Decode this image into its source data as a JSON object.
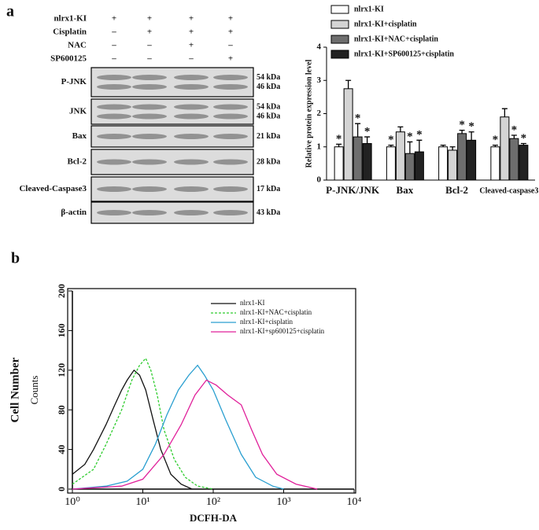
{
  "panel_labels": [
    "a",
    "b"
  ],
  "blot": {
    "conditions": [
      {
        "name": "nlrx1-KI",
        "signs": [
          "+",
          "+",
          "+",
          "+"
        ]
      },
      {
        "name": "Cisplatin",
        "signs": [
          "–",
          "+",
          "+",
          "+"
        ]
      },
      {
        "name": "NAC",
        "signs": [
          "–",
          "–",
          "+",
          "–"
        ]
      },
      {
        "name": "SP600125",
        "signs": [
          "–",
          "–",
          "–",
          "+"
        ]
      }
    ],
    "bands": [
      {
        "name": "P-JNK",
        "sizes": [
          "54 kDa",
          "46 kDa"
        ]
      },
      {
        "name": "JNK",
        "sizes": [
          "54 kDa",
          "46 kDa"
        ]
      },
      {
        "name": "Bax",
        "sizes": [
          "21 kDa"
        ]
      },
      {
        "name": "Bcl-2",
        "sizes": [
          "28 kDa"
        ]
      },
      {
        "name": "Cleaved-Caspase3",
        "sizes": [
          "17 kDa"
        ]
      },
      {
        "name": "β-actin",
        "sizes": [
          "43 kDa"
        ]
      }
    ]
  },
  "chart_data": [
    {
      "type": "bar",
      "ylabel": "Relative protein expression level",
      "categories": [
        "P-JNK/JNK",
        "Bax",
        "Bcl-2",
        "Cleaved-caspase3"
      ],
      "ylim": [
        0,
        4
      ],
      "yticks": [
        0,
        1,
        2,
        3,
        4
      ],
      "series": [
        {
          "name": "nlrx1-KI",
          "color": "#ffffff",
          "values": [
            1.0,
            1.0,
            1.0,
            1.0
          ],
          "errors": [
            0.08,
            0.05,
            0.05,
            0.05
          ],
          "significance": [
            "*",
            "*",
            null,
            "*"
          ]
        },
        {
          "name": "nlrx1-KI+cisplatin",
          "color": "#d4d4d4",
          "values": [
            2.75,
            1.45,
            0.9,
            1.9
          ],
          "errors": [
            0.25,
            0.15,
            0.1,
            0.25
          ],
          "significance": [
            null,
            null,
            null,
            null
          ]
        },
        {
          "name": "nlrx1-KI+NAC+cisplatin",
          "color": "#6e6e6e",
          "values": [
            1.3,
            0.8,
            1.4,
            1.25
          ],
          "errors": [
            0.4,
            0.35,
            0.1,
            0.1
          ],
          "significance": [
            "*",
            "*",
            "*",
            "*"
          ]
        },
        {
          "name": "nlrx1-KI+SP600125+cisplatin",
          "color": "#222222",
          "values": [
            1.1,
            0.85,
            1.2,
            1.05
          ],
          "errors": [
            0.2,
            0.35,
            0.25,
            0.05
          ],
          "significance": [
            "*",
            "*",
            "*",
            "*"
          ]
        }
      ]
    },
    {
      "type": "line",
      "xlabel": "DCFH-DA",
      "ylabel": "Cell Number",
      "ylabel_inner": "Counts",
      "log_x": true,
      "xlim": [
        1,
        10000
      ],
      "xticks": [
        {
          "value": 1,
          "label": "10⁰"
        },
        {
          "value": 10,
          "label": "10¹"
        },
        {
          "value": 100,
          "label": "10²"
        },
        {
          "value": 1000,
          "label": "10³"
        },
        {
          "value": 10000,
          "label": "10⁴"
        }
      ],
      "ylim": [
        0,
        200
      ],
      "yticks": [
        0,
        40,
        80,
        120,
        160,
        200
      ],
      "series": [
        {
          "name": "nlrx1-KI",
          "color": "#111111",
          "dashed": false,
          "x": [
            1,
            1.5,
            2,
            3,
            4,
            5,
            6,
            7.5,
            9,
            11,
            14,
            18,
            25,
            35,
            50
          ],
          "values": [
            15,
            25,
            40,
            65,
            85,
            100,
            110,
            120,
            115,
            100,
            70,
            40,
            15,
            5,
            0
          ]
        },
        {
          "name": "nlrx1-KI+NAC+cisplatin",
          "color": "#2ecc2e",
          "dashed": true,
          "x": [
            1,
            2,
            3,
            5,
            7,
            9,
            11,
            13,
            16,
            20,
            28,
            40,
            60,
            100
          ],
          "values": [
            5,
            20,
            45,
            80,
            110,
            125,
            132,
            120,
            95,
            60,
            30,
            12,
            3,
            0
          ]
        },
        {
          "name": "nlrx1-KI+cisplatin",
          "color": "#2a9fd0",
          "dashed": false,
          "x": [
            1,
            3,
            6,
            10,
            15,
            22,
            32,
            45,
            60,
            75,
            100,
            150,
            250,
            400,
            700,
            1000
          ],
          "values": [
            0,
            3,
            8,
            20,
            45,
            75,
            100,
            115,
            125,
            115,
            100,
            70,
            35,
            12,
            3,
            0
          ]
        },
        {
          "name": "nlrx1-KI+sp600125+cisplatin",
          "color": "#e0209a",
          "dashed": false,
          "x": [
            1,
            5,
            10,
            20,
            35,
            55,
            80,
            110,
            160,
            250,
            350,
            500,
            800,
            1500,
            3000
          ],
          "values": [
            0,
            3,
            10,
            35,
            65,
            95,
            110,
            105,
            95,
            85,
            60,
            35,
            15,
            5,
            0
          ]
        }
      ]
    }
  ]
}
